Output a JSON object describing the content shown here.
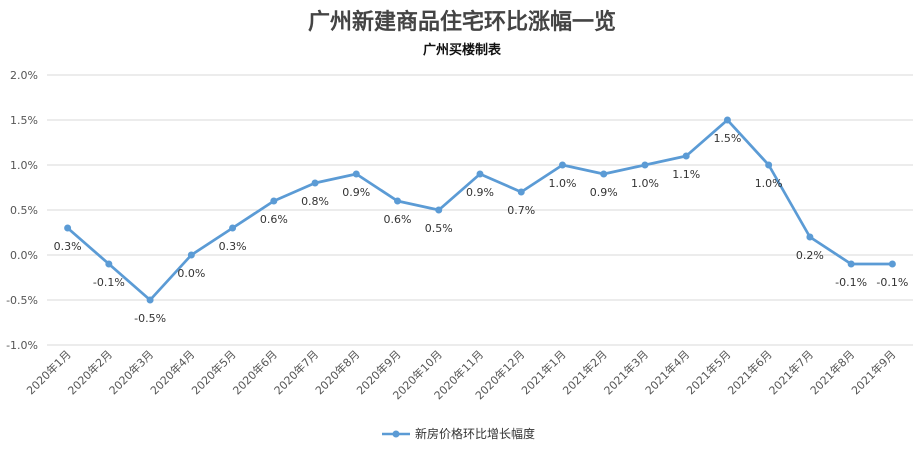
{
  "chart_data": {
    "type": "line",
    "title": "广州新建商品住宅环比涨幅一览",
    "subtitle": "广州买楼制表",
    "categories": [
      "2020年1月",
      "2020年2月",
      "2020年3月",
      "2020年4月",
      "2020年5月",
      "2020年6月",
      "2020年7月",
      "2020年8月",
      "2020年9月",
      "2020年10月",
      "2020年11月",
      "2020年12月",
      "2021年1月",
      "2021年2月",
      "2021年3月",
      "2021年4月",
      "2021年5月",
      "2021年6月",
      "2021年7月",
      "2021年8月",
      "2021年9月"
    ],
    "series": [
      {
        "name": "新房价格环比增长幅度",
        "values": [
          0.3,
          -0.1,
          -0.5,
          0.0,
          0.3,
          0.6,
          0.8,
          0.9,
          0.6,
          0.5,
          0.9,
          0.7,
          1.0,
          0.9,
          1.0,
          1.1,
          1.5,
          1.0,
          0.2,
          -0.1,
          -0.1
        ],
        "labels": [
          "0.3%",
          "-0.1%",
          "-0.5%",
          "0.0%",
          "0.3%",
          "0.6%",
          "0.8%",
          "0.9%",
          "0.6%",
          "0.5%",
          "0.9%",
          "0.7%",
          "1.0%",
          "0.9%",
          "1.0%",
          "1.1%",
          "1.5%",
          "1.0%",
          "0.2%",
          "-0.1%",
          "-0.1%"
        ]
      }
    ],
    "ylim": [
      -1.0,
      2.0
    ],
    "yticks": [
      2.0,
      1.5,
      1.0,
      0.5,
      0.0,
      -0.5,
      -1.0
    ],
    "ytick_labels": [
      "2.0%",
      "1.5%",
      "1.0%",
      "0.5%",
      "0.0%",
      "-0.5%",
      "-1.0%"
    ],
    "grid": true,
    "legend": "bottom-center",
    "colors": {
      "line": "#5b9bd5",
      "grid": "#d9d9d9",
      "text": "#555555"
    }
  }
}
